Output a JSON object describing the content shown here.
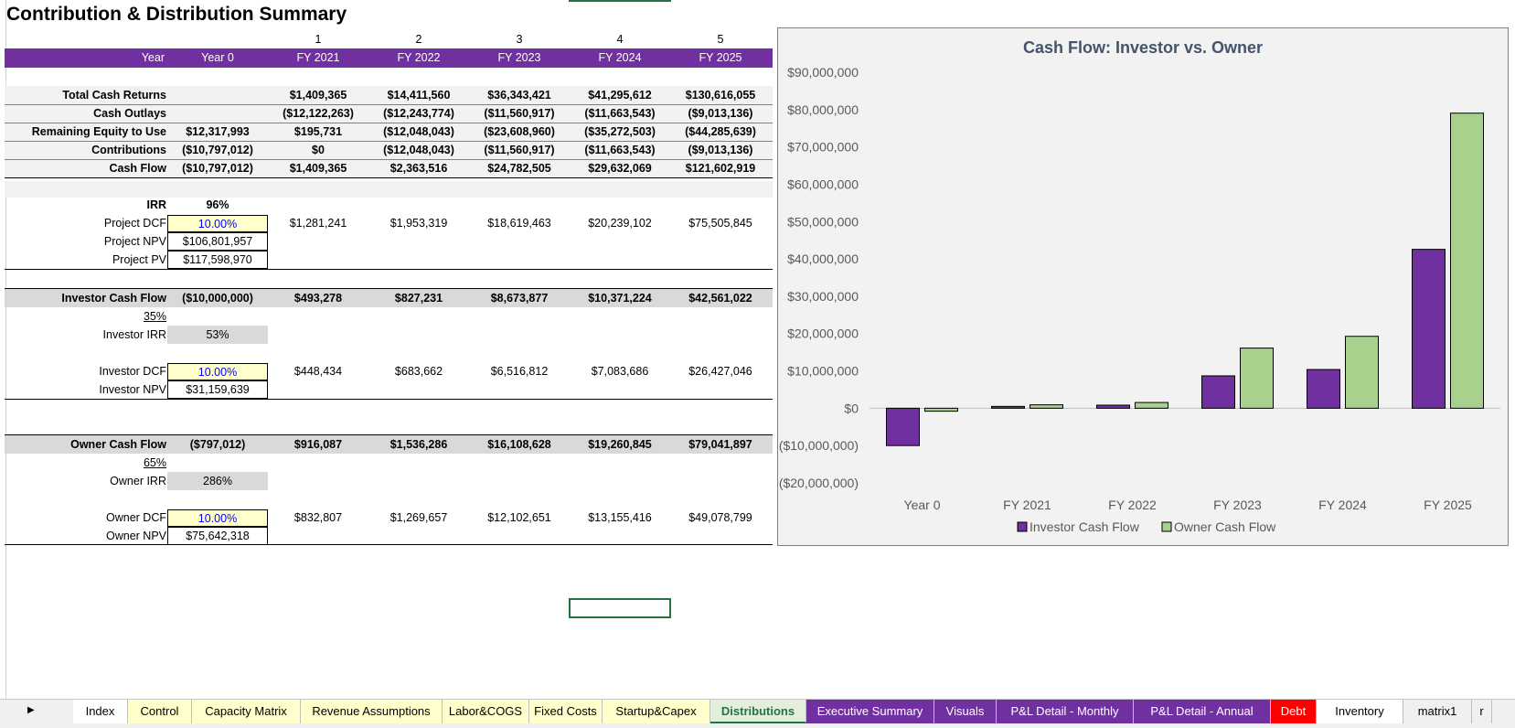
{
  "title": "Contribution & Distribution Summary",
  "colors": {
    "purple": "#7030a0",
    "green": "#a9d18e",
    "accent": "#217346",
    "input_blue": "#0000ff"
  },
  "year_numbers": [
    "1",
    "2",
    "3",
    "4",
    "5"
  ],
  "header": {
    "year_label": "Year",
    "years": [
      "Year 0",
      "FY 2021",
      "FY 2022",
      "FY 2023",
      "FY 2024",
      "FY 2025"
    ]
  },
  "summary": {
    "total_cash_returns": {
      "label": "Total Cash Returns",
      "values": [
        "",
        "$1,409,365",
        "$14,411,560",
        "$36,343,421",
        "$41,295,612",
        "$130,616,055"
      ]
    },
    "cash_outlays": {
      "label": "Cash Outlays",
      "values": [
        "",
        "($12,122,263)",
        "($12,243,774)",
        "($11,560,917)",
        "($11,663,543)",
        "($9,013,136)"
      ]
    },
    "remaining_equity": {
      "label": "Remaining Equity to Use",
      "values": [
        "$12,317,993",
        "$195,731",
        "($12,048,043)",
        "($23,608,960)",
        "($35,272,503)",
        "($44,285,639)"
      ]
    },
    "contributions": {
      "label": "Contributions",
      "values": [
        "($10,797,012)",
        "$0",
        "($12,048,043)",
        "($11,560,917)",
        "($11,663,543)",
        "($9,013,136)"
      ]
    },
    "cash_flow": {
      "label": "Cash Flow",
      "values": [
        "($10,797,012)",
        "$1,409,365",
        "$2,363,516",
        "$24,782,505",
        "$29,632,069",
        "$121,602,919"
      ]
    }
  },
  "project": {
    "irr_label": "IRR",
    "irr": "96%",
    "dcf_label": "Project DCF",
    "dcf": "10.00%",
    "dcf_values": [
      "$1,281,241",
      "$1,953,319",
      "$18,619,463",
      "$20,239,102",
      "$75,505,845"
    ],
    "npv_label": "Project NPV",
    "npv": "$106,801,957",
    "pv_label": "Project PV",
    "pv": "$117,598,970"
  },
  "investor": {
    "cf_label": "Investor Cash Flow",
    "cf_values": [
      "($10,000,000)",
      "$493,278",
      "$827,231",
      "$8,673,877",
      "$10,371,224",
      "$42,561,022"
    ],
    "share": "35%",
    "irr_label": "Investor IRR",
    "irr": "53%",
    "dcf_label": "Investor DCF",
    "dcf": "10.00%",
    "dcf_values": [
      "$448,434",
      "$683,662",
      "$6,516,812",
      "$7,083,686",
      "$26,427,046"
    ],
    "npv_label": "Investor NPV",
    "npv": "$31,159,639"
  },
  "owner": {
    "cf_label": "Owner Cash Flow",
    "cf_values": [
      "($797,012)",
      "$916,087",
      "$1,536,286",
      "$16,108,628",
      "$19,260,845",
      "$79,041,897"
    ],
    "share": "65%",
    "irr_label": "Owner IRR",
    "irr": "286%",
    "dcf_label": "Owner DCF",
    "dcf": "10.00%",
    "dcf_values": [
      "$832,807",
      "$1,269,657",
      "$12,102,651",
      "$13,155,416",
      "$49,078,799"
    ],
    "npv_label": "Owner NPV",
    "npv": "$75,642,318"
  },
  "chart_data": {
    "type": "bar",
    "title": "Cash Flow: Investor vs. Owner",
    "categories": [
      "Year 0",
      "FY 2021",
      "FY 2022",
      "FY 2023",
      "FY 2024",
      "FY 2025"
    ],
    "series": [
      {
        "name": "Investor Cash Flow",
        "color": "#7030a0",
        "values": [
          -10000000,
          493278,
          827231,
          8673877,
          10371224,
          42561022
        ]
      },
      {
        "name": "Owner Cash Flow",
        "color": "#a9d18e",
        "values": [
          -797012,
          916087,
          1536286,
          16108628,
          19260845,
          79041897
        ]
      }
    ],
    "ylim": [
      -20000000,
      90000000
    ],
    "yticks": [
      "($20,000,000)",
      "($10,000,000)",
      "$0",
      "$10,000,000",
      "$20,000,000",
      "$30,000,000",
      "$40,000,000",
      "$50,000,000",
      "$60,000,000",
      "$70,000,000",
      "$80,000,000",
      "$90,000,000"
    ],
    "ytick_values": [
      -20000000,
      -10000000,
      0,
      10000000,
      20000000,
      30000000,
      40000000,
      50000000,
      60000000,
      70000000,
      80000000,
      90000000
    ],
    "legend": "bottom",
    "grid": false
  },
  "sheet_tabs": [
    {
      "label": "Index",
      "color": "#ffffff"
    },
    {
      "label": "Control",
      "color": "#ffffcc"
    },
    {
      "label": "Capacity Matrix",
      "color": "#ffffcc"
    },
    {
      "label": "Revenue Assumptions",
      "color": "#ffffcc"
    },
    {
      "label": "Labor&COGS",
      "color": "#ffffcc"
    },
    {
      "label": "Fixed Costs",
      "color": "#ffffcc"
    },
    {
      "label": "Startup&Capex",
      "color": "#ffffcc"
    },
    {
      "label": "Distributions",
      "color": "#e2efda",
      "active": true
    },
    {
      "label": "Executive Summary",
      "color": "#7030a0"
    },
    {
      "label": "Visuals",
      "color": "#7030a0"
    },
    {
      "label": "P&L Detail - Monthly",
      "color": "#7030a0"
    },
    {
      "label": "P&L Detail - Annual",
      "color": "#7030a0"
    },
    {
      "label": "Debt",
      "color": "#ff0000"
    },
    {
      "label": "Inventory",
      "color": "#ffffff"
    },
    {
      "label": "matrix1",
      "color": "#f0f0f0"
    },
    {
      "label": "r",
      "color": "#f0f0f0"
    }
  ]
}
